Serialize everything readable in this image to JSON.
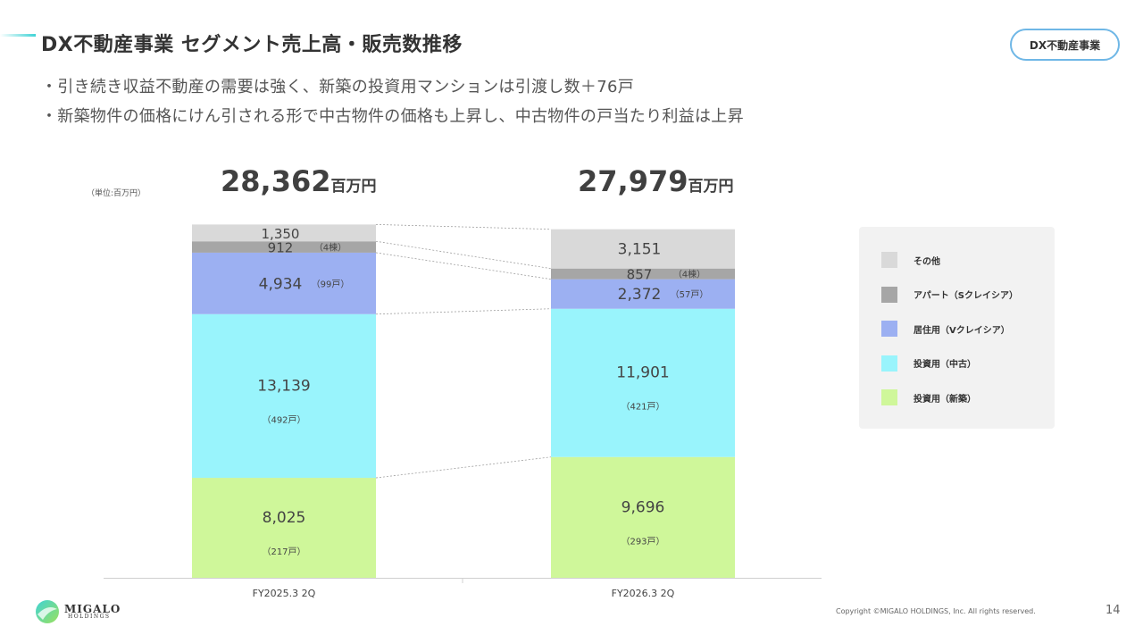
{
  "header": {
    "title": "DX不動産事業 セグメント売上高・販売数推移",
    "badge": "DX不動産事業"
  },
  "bullets": [
    "・引き続き収益不動産の需要は強く、新築の投資用マンションは引渡し数＋76戸",
    "・新築物件の価格にけん引される形で中古物件の価格も上昇し、中古物件の戸当たり利益は上昇"
  ],
  "chart_data": {
    "type": "bar",
    "stacked": true,
    "unit_note": "（単位:百万円）",
    "categories": [
      "FY2025.3 2Q",
      "FY2026.3 2Q"
    ],
    "totals": [
      {
        "value": "28,362",
        "unit": "百万円"
      },
      {
        "value": "27,979",
        "unit": "百万円"
      }
    ],
    "series": [
      {
        "name": "投資用（新築）",
        "color": "#cff79a",
        "values": [
          8025,
          9696
        ],
        "labels": [
          "8,025",
          "9,696"
        ],
        "notes": [
          "（217戸）",
          "（293戸）"
        ]
      },
      {
        "name": "投資用（中古）",
        "color": "#99f4fc",
        "values": [
          13139,
          11901
        ],
        "labels": [
          "13,139",
          "11,901"
        ],
        "notes": [
          "（492戸）",
          "（421戸）"
        ]
      },
      {
        "name": "居住用（Vクレイシア）",
        "color": "#9cb0f2",
        "values": [
          4934,
          2372
        ],
        "labels": [
          "4,934",
          "2,372"
        ],
        "notes": [
          "（99戸）",
          "（57戸）"
        ]
      },
      {
        "name": "アパート（Sクレイシア）",
        "color": "#a6a6a6",
        "values": [
          912,
          857
        ],
        "labels": [
          "912",
          "857"
        ],
        "notes": [
          "（4棟）",
          "（4棟）"
        ]
      },
      {
        "name": "その他",
        "color": "#d9d9d9",
        "values": [
          1350,
          3151
        ],
        "labels": [
          "1,350",
          "3,151"
        ],
        "notes": [
          "",
          ""
        ]
      }
    ],
    "legend_position": "right"
  },
  "footer": {
    "logo_name": "MIGALO",
    "logo_sub": "HOLDINGS",
    "copyright": "Copyright ©MIGALO HOLDINGS, Inc. All rights reserved.",
    "page_number": "14"
  }
}
